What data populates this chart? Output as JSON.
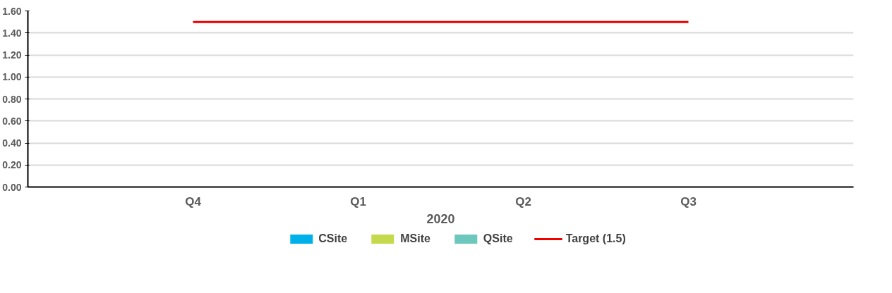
{
  "chart_data": {
    "type": "bar",
    "xlabel": "2020",
    "categories": [
      "Q4",
      "Q1",
      "Q2",
      "Q3"
    ],
    "series": [
      {
        "name": "CSite",
        "color": "#00b0e8",
        "values": [
          0,
          0,
          0,
          0
        ]
      },
      {
        "name": "MSite",
        "color": "#c5d94c",
        "values": [
          0,
          0,
          0,
          0
        ]
      },
      {
        "name": "QSite",
        "color": "#6cc7bd",
        "values": [
          0,
          0,
          0,
          0
        ]
      },
      {
        "name": "Target (1.5)",
        "type": "line",
        "color": "#ee0000",
        "values": [
          1.5,
          1.5,
          1.5,
          1.5
        ]
      }
    ],
    "ylim": [
      0,
      1.6
    ],
    "yticks": [
      {
        "value": 0,
        "label": "0.00"
      },
      {
        "value": 0.2,
        "label": "0.20"
      },
      {
        "value": 0.4,
        "label": "0.40"
      },
      {
        "value": 0.6,
        "label": "0.60"
      },
      {
        "value": 0.8,
        "label": "0.80"
      },
      {
        "value": 1.0,
        "label": "1.00"
      },
      {
        "value": 1.2,
        "label": "1.20"
      },
      {
        "value": 1.4,
        "label": "1.40"
      },
      {
        "value": 1.6,
        "label": "1.60"
      }
    ],
    "grid": "y",
    "legend": "bottom"
  }
}
